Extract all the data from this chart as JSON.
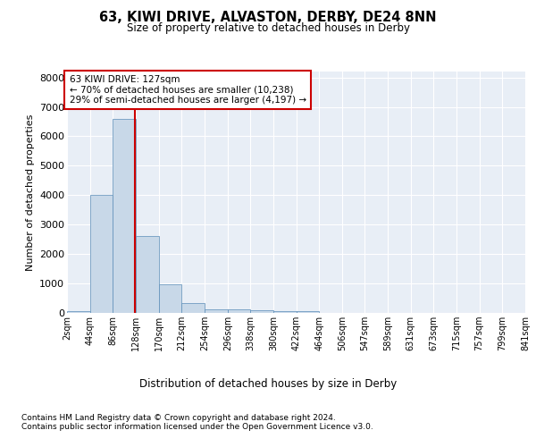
{
  "title": "63, KIWI DRIVE, ALVASTON, DERBY, DE24 8NN",
  "subtitle": "Size of property relative to detached houses in Derby",
  "xlabel": "Distribution of detached houses by size in Derby",
  "ylabel": "Number of detached properties",
  "bar_color": "#c8d8e8",
  "bar_edge_color": "#5b8db8",
  "vline_color": "#cc0000",
  "vline_x": 127,
  "annotation_text": "63 KIWI DRIVE: 127sqm\n← 70% of detached houses are smaller (10,238)\n29% of semi-detached houses are larger (4,197) →",
  "annotation_box_color": "#cc0000",
  "footer1": "Contains HM Land Registry data © Crown copyright and database right 2024.",
  "footer2": "Contains public sector information licensed under the Open Government Licence v3.0.",
  "bins": [
    2,
    44,
    86,
    128,
    170,
    212,
    254,
    296,
    338,
    380,
    422,
    464,
    506,
    547,
    589,
    631,
    673,
    715,
    757,
    799,
    841
  ],
  "counts": [
    70,
    4000,
    6600,
    2600,
    960,
    320,
    130,
    120,
    80,
    65,
    50,
    0,
    0,
    0,
    0,
    0,
    0,
    0,
    0,
    0
  ],
  "ylim": [
    0,
    8200
  ],
  "yticks": [
    0,
    1000,
    2000,
    3000,
    4000,
    5000,
    6000,
    7000,
    8000
  ],
  "background_color": "#e8eef6",
  "grid_color": "#ffffff"
}
